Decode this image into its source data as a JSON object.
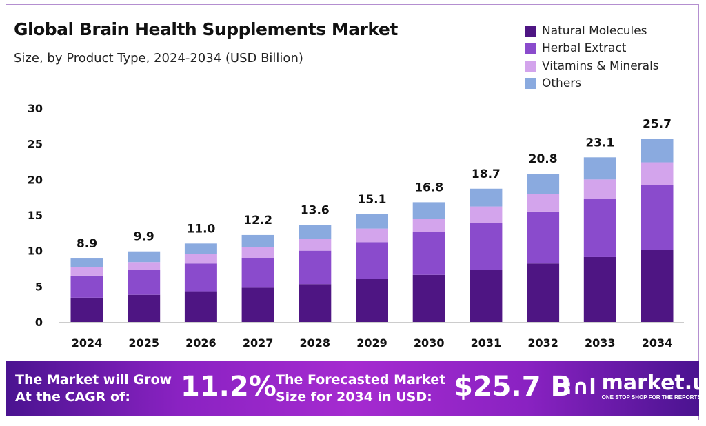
{
  "title": "Global Brain Health Supplements Market",
  "subtitle": "Size, by Product Type, 2024-2034 (USD Billion)",
  "colors": {
    "Natural Molecules": "#4e1583",
    "Herbal Extract": "#8a4bcc",
    "Vitamins & Minerals": "#d3a4ec",
    "Others": "#8aaadf"
  },
  "chart_data": {
    "type": "bar",
    "stacked": true,
    "title": "Global Brain Health Supplements Market",
    "subtitle": "Size, by Product Type, 2024-2034 (USD Billion)",
    "xlabel": "",
    "ylabel": "",
    "ylim": [
      0,
      30
    ],
    "yticks": [
      0,
      5,
      10,
      15,
      20,
      25,
      30
    ],
    "grid": false,
    "legend_position": "top-right",
    "categories": [
      "2024",
      "2025",
      "2026",
      "2027",
      "2028",
      "2029",
      "2030",
      "2031",
      "2032",
      "2033",
      "2034"
    ],
    "totals": [
      "8.9",
      "9.9",
      "11.0",
      "12.2",
      "13.6",
      "15.1",
      "16.8",
      "18.7",
      "20.8",
      "23.1",
      "25.7"
    ],
    "series": [
      {
        "name": "Natural Molecules",
        "values": [
          3.4,
          3.8,
          4.3,
          4.8,
          5.3,
          6.0,
          6.6,
          7.3,
          8.2,
          9.1,
          10.1
        ]
      },
      {
        "name": "Herbal Extract",
        "values": [
          3.1,
          3.5,
          3.9,
          4.2,
          4.7,
          5.2,
          6.0,
          6.6,
          7.3,
          8.2,
          9.1
        ]
      },
      {
        "name": "Vitamins & Minerals",
        "values": [
          1.2,
          1.1,
          1.3,
          1.5,
          1.7,
          1.9,
          1.9,
          2.3,
          2.5,
          2.7,
          3.2
        ]
      },
      {
        "name": "Others",
        "values": [
          1.2,
          1.5,
          1.5,
          1.7,
          1.9,
          2.0,
          2.3,
          2.5,
          2.8,
          3.1,
          3.3
        ]
      }
    ]
  },
  "banner": {
    "cagr_label_1": "The Market will Grow",
    "cagr_label_2": "At the CAGR of:",
    "cagr_value": "11.2%",
    "forecast_label_1": "The Forecasted Market",
    "forecast_label_2": "Size for 2034 in USD:",
    "forecast_value": "$25.7 B",
    "logo_name": "market.us",
    "logo_tagline": "ONE STOP SHOP FOR THE REPORTS"
  }
}
